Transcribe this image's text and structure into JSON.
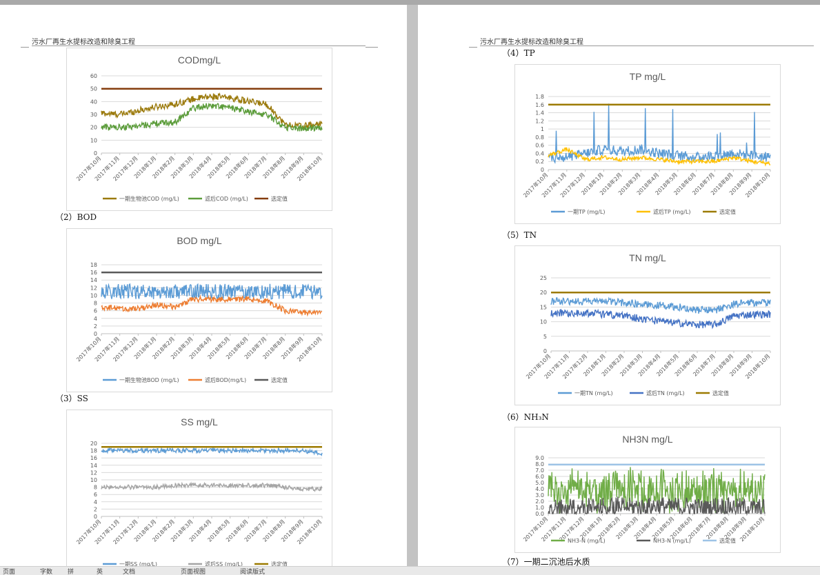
{
  "document": {
    "header_text": "污水厂再生水提标改造和除臭工程",
    "captions": {
      "bod": "（2）BOD",
      "ss": "（3）SS",
      "tp": "（4）TP",
      "tn": "（5）TN",
      "nh3n": "（6）NH₃N",
      "next": "（7）一期二沉池后水质"
    }
  },
  "status_bar": {
    "items": [
      "页面",
      "字数",
      "拼",
      "英",
      "文档",
      "页面视图",
      "阅读版式"
    ]
  },
  "colors": {
    "brown_limit": "#843c0c",
    "olive": "#9b7a0c",
    "green": "#5b9c3a",
    "blue": "#5b9bd5",
    "orange": "#ed7d31",
    "gray": "#a5a5a5",
    "darkgray": "#595959",
    "gold": "#9c7a00",
    "yellow": "#ffc000",
    "darkblue": "#4472c4",
    "lightgreen": "#70ad47",
    "lightblue": "#9dc3e6"
  },
  "x_labels": [
    "2017年10月",
    "2017年11月",
    "2017年12月",
    "2018年1月",
    "2018年2月",
    "2018年3月",
    "2018年4月",
    "2018年5月",
    "2018年6月",
    "2018年7月",
    "2018年8月",
    "2018年9月",
    "2018年10月"
  ],
  "chart_data": [
    {
      "id": "cod",
      "type": "line",
      "title": "CODmg/L",
      "y_ticks": [
        "0",
        "10",
        "20",
        "30",
        "40",
        "50",
        "60"
      ],
      "ylim": [
        0,
        60
      ],
      "legend": [
        {
          "name": "一期生物池COD (mg/L)",
          "color": "#9b7a0c"
        },
        {
          "name": "滤后COD (mg/L)",
          "color": "#5b9c3a"
        },
        {
          "name": "选定值",
          "color": "#843c0c"
        }
      ],
      "series": [
        {
          "name": "一期生物池COD (mg/L)",
          "color": "#9b7a0c",
          "approx_level_by_month": [
            31,
            30,
            33,
            36,
            38,
            42,
            44,
            43,
            40,
            38,
            22,
            21,
            23
          ],
          "noise": 5
        },
        {
          "name": "滤后COD (mg/L)",
          "color": "#5b9c3a",
          "approx_level_by_month": [
            20,
            20,
            21,
            23,
            24,
            35,
            37,
            35,
            32,
            30,
            20,
            19,
            20
          ],
          "noise": 5
        },
        {
          "name": "选定值",
          "color": "#843c0c",
          "constant": 50
        }
      ]
    },
    {
      "id": "bod",
      "type": "line",
      "title": "BOD mg/L",
      "y_ticks": [
        "0",
        "2",
        "4",
        "6",
        "8",
        "10",
        "12",
        "14",
        "16",
        "18"
      ],
      "ylim": [
        0,
        18
      ],
      "legend": [
        {
          "name": "一期生物池BOD (mg/L)",
          "color": "#5b9bd5"
        },
        {
          "name": "滤后BOD(mg/L)",
          "color": "#ed7d31"
        },
        {
          "name": "选定值",
          "color": "#595959"
        }
      ],
      "series": [
        {
          "name": "一期生物池BOD (mg/L)",
          "color": "#5b9bd5",
          "approx_level_by_month": [
            11,
            11,
            11,
            11,
            11,
            11,
            11,
            11,
            11,
            11,
            11,
            11,
            11
          ],
          "noise": 4
        },
        {
          "name": "滤后BOD(mg/L)",
          "color": "#ed7d31",
          "approx_level_by_month": [
            7,
            6.5,
            6.5,
            7.5,
            7,
            9,
            9,
            9,
            9,
            8.5,
            6,
            5.5,
            6
          ],
          "noise": 1.5
        },
        {
          "name": "选定值",
          "color": "#595959",
          "constant": 16
        }
      ]
    },
    {
      "id": "ss",
      "type": "line",
      "title": "SS mg/L",
      "y_ticks": [
        "0",
        "2",
        "4",
        "6",
        "8",
        "10",
        "12",
        "14",
        "16",
        "18",
        "20"
      ],
      "ylim": [
        0,
        20
      ],
      "legend": [
        {
          "name": "一期SS (mg/L)",
          "color": "#5b9bd5"
        },
        {
          "name": "滤后SS (mg/L)",
          "color": "#a5a5a5"
        },
        {
          "name": "选定值",
          "color": "#9c7a00"
        }
      ],
      "series": [
        {
          "name": "一期SS (mg/L)",
          "color": "#5b9bd5",
          "approx_level_by_month": [
            18,
            18,
            18,
            18,
            18,
            18,
            18,
            18,
            18,
            18,
            18,
            18,
            17
          ],
          "noise": 1.2
        },
        {
          "name": "滤后SS (mg/L)",
          "color": "#a5a5a5",
          "approx_level_by_month": [
            8,
            8,
            8,
            8,
            8.5,
            8.5,
            8.5,
            8.5,
            8.5,
            8.5,
            8,
            7.5,
            7.5
          ],
          "noise": 1.2
        },
        {
          "name": "选定值",
          "color": "#9c7a00",
          "constant": 19
        }
      ]
    },
    {
      "id": "tp",
      "type": "line",
      "title": "TP mg/L",
      "y_ticks": [
        "0",
        "0.2",
        "0.4",
        "0.6",
        "0.8",
        "1",
        "1.2",
        "1.4",
        "1.6",
        "1.8"
      ],
      "ylim": [
        0,
        1.8
      ],
      "legend": [
        {
          "name": "一期TP (mg/L)",
          "color": "#5b9bd5"
        },
        {
          "name": "滤后TP (mg/L)",
          "color": "#ffc000"
        },
        {
          "name": "选定值",
          "color": "#9c7a00"
        }
      ],
      "series": [
        {
          "name": "一期TP (mg/L)",
          "color": "#5b9bd5",
          "approx_level_by_month": [
            0.3,
            0.3,
            0.4,
            0.5,
            0.45,
            0.5,
            0.4,
            0.35,
            0.3,
            0.35,
            0.4,
            0.35,
            0.3
          ],
          "noise": 0.25,
          "spikes": true
        },
        {
          "name": "滤后TP (mg/L)",
          "color": "#ffc000",
          "approx_level_by_month": [
            0.35,
            0.5,
            0.25,
            0.3,
            0.25,
            0.3,
            0.25,
            0.2,
            0.2,
            0.2,
            0.3,
            0.2,
            0.15
          ],
          "noise": 0.1
        },
        {
          "name": "选定值",
          "color": "#9c7a00",
          "constant": 1.6
        }
      ]
    },
    {
      "id": "tn",
      "type": "line",
      "title": "TN mg/L",
      "y_ticks": [
        "0",
        "5",
        "10",
        "15",
        "20",
        "25"
      ],
      "ylim": [
        0,
        25
      ],
      "legend": [
        {
          "name": "一期TN (mg/L)",
          "color": "#5b9bd5"
        },
        {
          "name": "滤后TN (mg/L)",
          "color": "#4472c4"
        },
        {
          "name": "选定值",
          "color": "#9c7a00"
        }
      ],
      "series": [
        {
          "name": "一期TN (mg/L)",
          "color": "#5b9bd5",
          "approx_level_by_month": [
            17,
            17,
            17,
            17,
            16.5,
            16,
            15.5,
            15,
            14,
            14,
            16,
            16.5,
            16.5
          ],
          "noise": 2.5
        },
        {
          "name": "滤后TN (mg/L)",
          "color": "#4472c4",
          "approx_level_by_month": [
            13,
            13,
            13,
            12.5,
            12,
            11,
            10,
            9.5,
            9,
            9,
            12,
            12.5,
            12.5
          ],
          "noise": 2.5
        },
        {
          "name": "选定值",
          "color": "#9c7a00",
          "constant": 20
        }
      ]
    },
    {
      "id": "nh3n",
      "type": "line",
      "title": "NH3N mg/L",
      "y_ticks": [
        "0.0",
        "1.0",
        "2.0",
        "3.0",
        "4.0",
        "5.0",
        "6.0",
        "7.0",
        "8.0",
        "9.0"
      ],
      "ylim": [
        0,
        9
      ],
      "legend": [
        {
          "name": "NH3-N (mg/L)",
          "color": "#70ad47"
        },
        {
          "name": "NH3-N (mg/L)",
          "color": "#595959"
        },
        {
          "name": "选定值",
          "color": "#9dc3e6"
        }
      ],
      "series": [
        {
          "name": "NH3-N (mg/L)",
          "color": "#70ad47",
          "approx_level_by_month": [
            3.5,
            3.5,
            3.8,
            3.8,
            3.8,
            3.8,
            3.8,
            3.8,
            3.8,
            3.8,
            3.8,
            3.8,
            3.5
          ],
          "noise": 3.8,
          "oscillate": true
        },
        {
          "name": "NH3-N (mg/L)",
          "color": "#595959",
          "approx_level_by_month": [
            0.6,
            0.7,
            0.8,
            0.9,
            1.0,
            1.1,
            1.2,
            1.1,
            1.0,
            1.0,
            1.1,
            1.0,
            0.8
          ],
          "noise": 1.8,
          "oscillate": true
        },
        {
          "name": "选定值",
          "color": "#9dc3e6",
          "constant": 7.9
        }
      ]
    }
  ]
}
